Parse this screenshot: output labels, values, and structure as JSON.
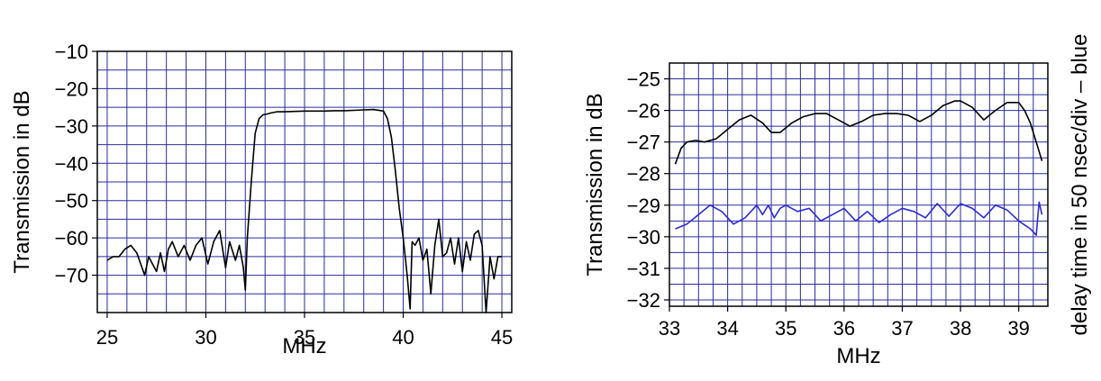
{
  "chart_data": [
    {
      "type": "line",
      "xlabel": "MHz",
      "ylabel": "Transmission in dB",
      "xlim": [
        24.5,
        45.5
      ],
      "ylim": [
        -80,
        -10
      ],
      "xticks": [
        25,
        30,
        35,
        40,
        45
      ],
      "yticks": [
        -10,
        -20,
        -30,
        -40,
        -50,
        -60,
        -70
      ],
      "xtick_labels": [
        "25",
        "30",
        "35",
        "40",
        "45"
      ],
      "ytick_labels": [
        "−10",
        "−20",
        "−30",
        "−40",
        "−50",
        "−60",
        "−70"
      ],
      "grid": true,
      "series": [
        {
          "color": "#000000",
          "x": [
            25.0,
            25.3,
            25.6,
            25.9,
            26.2,
            26.5,
            26.7,
            26.9,
            27.1,
            27.3,
            27.5,
            27.7,
            27.9,
            28.1,
            28.3,
            28.6,
            28.9,
            29.2,
            29.5,
            29.8,
            30.1,
            30.4,
            30.7,
            31.0,
            31.2,
            31.5,
            31.7,
            31.9,
            32.0,
            32.1,
            32.3,
            32.5,
            32.7,
            32.9,
            33.1,
            33.3,
            33.6,
            34.0,
            34.5,
            35.0,
            35.5,
            36.0,
            36.5,
            37.0,
            37.5,
            38.0,
            38.5,
            39.0,
            39.2,
            39.4,
            39.6,
            39.8,
            40.0,
            40.2,
            40.35,
            40.45,
            40.6,
            40.8,
            41.0,
            41.2,
            41.4,
            41.6,
            41.8,
            42.0,
            42.2,
            42.4,
            42.6,
            42.8,
            43.0,
            43.2,
            43.4,
            43.6,
            43.8,
            44.0,
            44.2,
            44.4,
            44.6,
            44.8,
            45.0
          ],
          "y": [
            -66,
            -65,
            -65,
            -63,
            -62,
            -64,
            -67,
            -70,
            -65,
            -67,
            -69,
            -64,
            -69,
            -63,
            -61,
            -65,
            -62,
            -66,
            -62,
            -60,
            -67,
            -61,
            -58,
            -68,
            -61,
            -66,
            -62,
            -68,
            -74,
            -60,
            -45,
            -32,
            -28,
            -27,
            -26.8,
            -26.5,
            -26.2,
            -26.2,
            -26.1,
            -26.0,
            -26.0,
            -26.0,
            -25.9,
            -25.9,
            -25.8,
            -25.7,
            -25.6,
            -26.0,
            -28,
            -33,
            -42,
            -52,
            -60,
            -70,
            -79,
            -61,
            -62,
            -60,
            -66,
            -63,
            -75,
            -62,
            -55,
            -65,
            -64,
            -60,
            -67,
            -60,
            -69,
            -61,
            -66,
            -59,
            -58,
            -62,
            -80,
            -65,
            -71,
            -65,
            -65
          ]
        }
      ]
    },
    {
      "type": "line",
      "xlabel": "MHz",
      "ylabel": "Transmission in dB",
      "y2label": "delay time in 50 nsec/div  –  blue",
      "xlim": [
        33.0,
        39.5
      ],
      "ylim": [
        -32.2,
        -24.5
      ],
      "xticks": [
        33,
        34,
        35,
        36,
        37,
        38,
        39
      ],
      "yticks": [
        -25,
        -26,
        -27,
        -28,
        -29,
        -30,
        -31,
        -32
      ],
      "xtick_labels": [
        "33",
        "34",
        "35",
        "36",
        "37",
        "38",
        "39"
      ],
      "ytick_labels": [
        "−25",
        "−26",
        "−27",
        "−28",
        "−29",
        "−30",
        "−31",
        "−32"
      ],
      "grid": true,
      "series": [
        {
          "color": "#000000",
          "x": [
            33.1,
            33.2,
            33.3,
            33.45,
            33.6,
            33.8,
            34.0,
            34.2,
            34.4,
            34.6,
            34.75,
            34.9,
            35.1,
            35.3,
            35.5,
            35.7,
            35.9,
            36.1,
            36.3,
            36.5,
            36.7,
            36.9,
            37.1,
            37.3,
            37.5,
            37.7,
            37.9,
            38.0,
            38.2,
            38.4,
            38.6,
            38.8,
            39.0,
            39.1,
            39.2,
            39.3,
            39.4
          ],
          "y": [
            -27.7,
            -27.2,
            -27.0,
            -26.95,
            -27.0,
            -26.9,
            -26.6,
            -26.3,
            -26.15,
            -26.4,
            -26.7,
            -26.7,
            -26.4,
            -26.2,
            -26.1,
            -26.1,
            -26.3,
            -26.5,
            -26.35,
            -26.15,
            -26.1,
            -26.1,
            -26.15,
            -26.35,
            -26.15,
            -25.85,
            -25.7,
            -25.7,
            -25.9,
            -26.3,
            -26.0,
            -25.75,
            -25.75,
            -26.0,
            -26.4,
            -27.0,
            -27.6
          ]
        },
        {
          "color": "#2b2bd8",
          "x": [
            33.1,
            33.3,
            33.5,
            33.7,
            33.9,
            34.1,
            34.3,
            34.5,
            34.6,
            34.7,
            34.8,
            34.9,
            35.0,
            35.2,
            35.4,
            35.6,
            35.8,
            36.0,
            36.2,
            36.4,
            36.6,
            36.8,
            37.0,
            37.2,
            37.4,
            37.6,
            37.8,
            38.0,
            38.2,
            38.4,
            38.6,
            38.8,
            39.0,
            39.2,
            39.3,
            39.35,
            39.4
          ],
          "y": [
            -29.75,
            -29.6,
            -29.3,
            -29.0,
            -29.2,
            -29.6,
            -29.4,
            -29.0,
            -29.3,
            -29.0,
            -29.4,
            -29.1,
            -29.0,
            -29.2,
            -29.1,
            -29.5,
            -29.3,
            -29.1,
            -29.5,
            -29.2,
            -29.55,
            -29.3,
            -29.1,
            -29.2,
            -29.4,
            -28.95,
            -29.35,
            -28.95,
            -29.1,
            -29.4,
            -29.0,
            -29.15,
            -29.5,
            -29.75,
            -29.95,
            -28.9,
            -29.3
          ]
        }
      ]
    }
  ]
}
